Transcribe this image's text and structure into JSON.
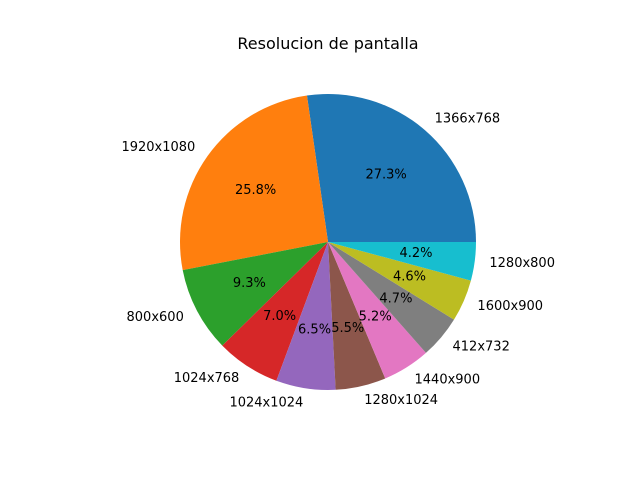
{
  "chart_data": {
    "type": "pie",
    "title": "Resolucion de pantalla",
    "categories": [
      "1366x768",
      "1920x1080",
      "800x600",
      "1024x768",
      "1024x1024",
      "1280x1024",
      "1440x900",
      "412x732",
      "1600x900",
      "1280x800"
    ],
    "values": [
      27.3,
      25.8,
      9.3,
      7.0,
      6.5,
      5.5,
      5.2,
      4.7,
      4.6,
      4.2
    ],
    "value_labels": [
      "27.3%",
      "25.8%",
      "9.3%",
      "7.0%",
      "6.5%",
      "5.5%",
      "5.2%",
      "4.7%",
      "4.6%",
      "4.2%"
    ],
    "colors": [
      "#1f77b4",
      "#ff7f0e",
      "#2ca02c",
      "#d62728",
      "#9467bd",
      "#8c564b",
      "#e377c2",
      "#7f7f7f",
      "#bcbd22",
      "#17becf"
    ],
    "start_angle_deg": 0,
    "direction": "counterclockwise",
    "legend": "none"
  }
}
